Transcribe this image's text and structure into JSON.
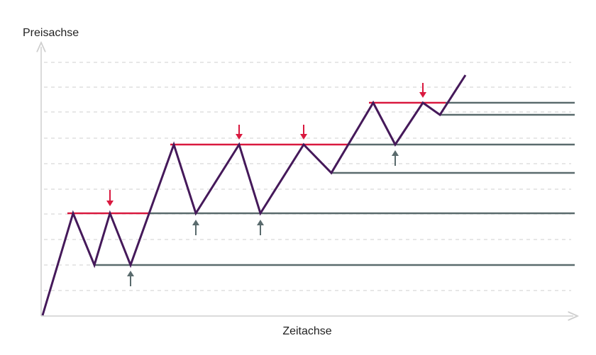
{
  "axes": {
    "y_label": "Preisachse",
    "x_label": "Zeitachse"
  }
}
